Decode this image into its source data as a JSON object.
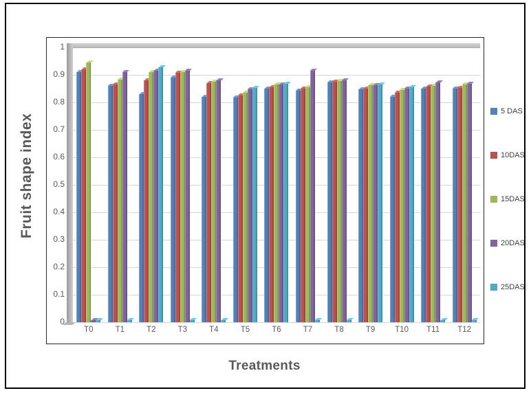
{
  "axis": {
    "ylabel": "Fruit shape index",
    "xlabel": "Treatments"
  },
  "chart_data": {
    "type": "bar",
    "style": "3d-clustered-column",
    "xlabel": "Treatments",
    "ylabel": "Fruit shape index",
    "ylim": [
      0,
      1
    ],
    "ytick_step": 0.1,
    "yticks": [
      "1",
      "0.9",
      "0.8",
      "0.7",
      "0.6",
      "0.5",
      "0.4",
      "0.3",
      "0.2",
      "0.1",
      "0"
    ],
    "grid": "horizontal-on",
    "legend_position": "right",
    "categories": [
      "T0",
      "T1",
      "T2",
      "T3",
      "T4",
      "T5",
      "T6",
      "T7",
      "T8",
      "T9",
      "T10",
      "T11",
      "T12"
    ],
    "series": [
      {
        "name": "5 DAS",
        "color": "#4F81BD",
        "values": [
          0.91,
          0.86,
          0.83,
          0.89,
          0.82,
          0.818,
          0.85,
          0.843,
          0.872,
          0.848,
          0.82,
          0.851,
          0.85
        ]
      },
      {
        "name": "10DAS",
        "color": "#C0504D",
        "values": [
          0.92,
          0.864,
          0.88,
          0.908,
          0.87,
          0.824,
          0.855,
          0.85,
          0.875,
          0.851,
          0.835,
          0.857,
          0.853
        ]
      },
      {
        "name": "15DAS",
        "color": "#9BBB59",
        "values": [
          0.944,
          0.882,
          0.909,
          0.909,
          0.876,
          0.836,
          0.865,
          0.856,
          0.878,
          0.862,
          0.845,
          0.86,
          0.864
        ]
      },
      {
        "name": "20DAS",
        "color": "#8064A2",
        "values": [
          0,
          0.91,
          0.916,
          0.915,
          0.88,
          0.848,
          0.866,
          0.914,
          0.88,
          0.863,
          0.85,
          0.873,
          0.868
        ]
      },
      {
        "name": "25DAS",
        "color": "#4BACC6",
        "values": [
          0,
          0,
          0.928,
          0,
          0,
          0.852,
          0.867,
          0,
          0,
          0.865,
          0.856,
          0,
          0
        ]
      }
    ],
    "wall_color": "#BFBFBF",
    "gridline_color": "#D9D9D9",
    "text_color": "#595959"
  }
}
